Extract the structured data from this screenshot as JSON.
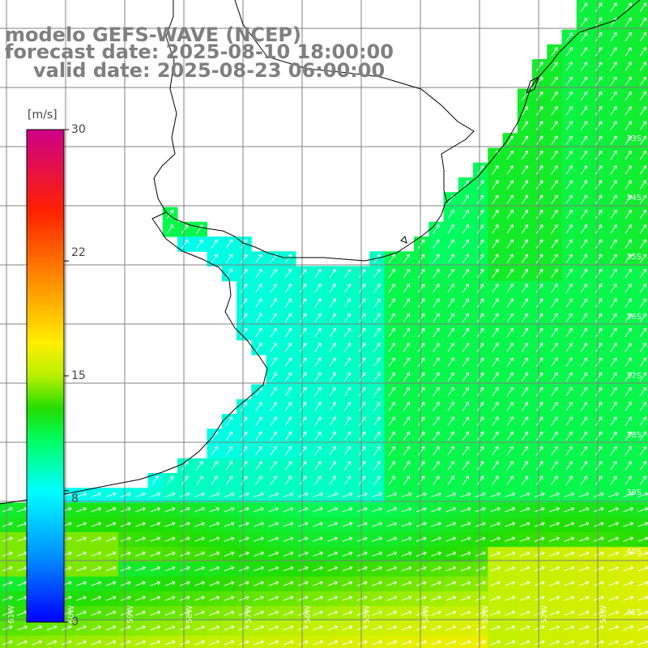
{
  "title": {
    "line1": "modelo GEFS-WAVE (NCEP)",
    "line2": "forecast date: 2025-08-10 18:00:00",
    "line3": "valid date: 2025-08-23 06:00:00"
  },
  "colorbar": {
    "unit": "[m/s]",
    "min": 0,
    "max": 30,
    "ticks": [
      "30",
      "22",
      "15",
      "8",
      "0"
    ],
    "tick_values": [
      30,
      22,
      15,
      8,
      0
    ],
    "colors": [
      "#0000ff",
      "#00a0ff",
      "#00ffff",
      "#00ff66",
      "#22dd00",
      "#ccff00",
      "#ffee00",
      "#ff8800",
      "#ff2200",
      "#cc0088"
    ]
  },
  "map": {
    "lon_range": [
      -61,
      -50
    ],
    "lat_range": [
      -41,
      -31
    ],
    "lat_labels": [
      "33S",
      "34S",
      "35S",
      "36S",
      "37S",
      "38S",
      "39S",
      "40S",
      "41S"
    ],
    "lon_labels": [
      "61W",
      "60W",
      "59W",
      "58W",
      "57W",
      "56W",
      "55W",
      "54W",
      "53W",
      "52W",
      "51W"
    ],
    "grid_color": "#808080",
    "coast_color": "#000000",
    "arrow_color": "#ffffff"
  }
}
